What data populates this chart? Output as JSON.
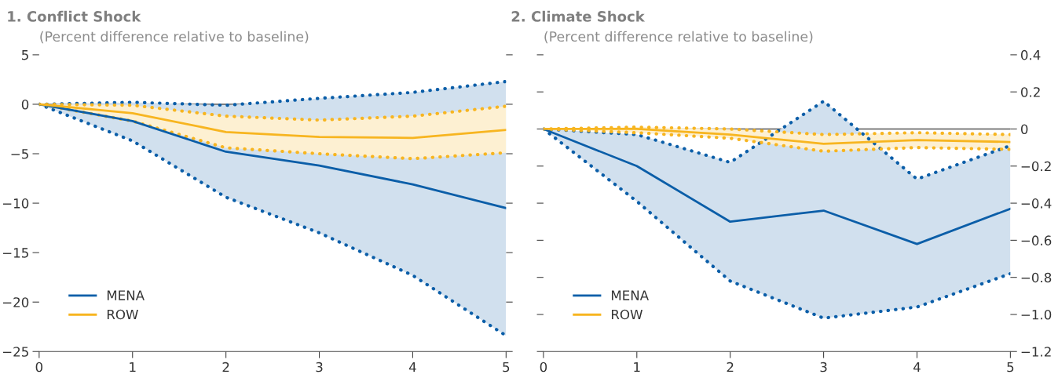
{
  "chart_data": [
    {
      "type": "line",
      "title": "1. Conflict Shock",
      "subtitle": "(Percent difference relative to baseline)",
      "x": [
        0,
        1,
        2,
        3,
        4,
        5
      ],
      "xlim": [
        0,
        5
      ],
      "xticks": [
        0,
        1,
        2,
        3,
        4,
        5
      ],
      "ylim": [
        -25,
        5
      ],
      "yticks": [
        {
          "value": -25,
          "label": "−25"
        },
        {
          "value": -20,
          "label": "−20"
        },
        {
          "value": -15,
          "label": "−15"
        },
        {
          "value": -10,
          "label": "−10"
        },
        {
          "value": -5,
          "label": "−5"
        },
        0,
        5
      ],
      "legend": "bottom left",
      "ref_lines": [
        {
          "axis": "y",
          "value": 0,
          "color": "#555555"
        }
      ],
      "series": [
        {
          "name": "MENA",
          "color": "#0b5ea8",
          "values": [
            0,
            -1.7,
            -4.8,
            -6.2,
            -8.1,
            -10.5
          ],
          "lower": [
            0,
            -3.7,
            -9.4,
            -13.0,
            -17.3,
            -23.4
          ],
          "upper": [
            0,
            0.2,
            -0.1,
            0.6,
            1.2,
            2.3
          ]
        },
        {
          "name": "ROW",
          "color": "#f7b520",
          "values": [
            0,
            -0.9,
            -2.8,
            -3.3,
            -3.4,
            -2.6
          ],
          "lower": [
            0,
            -1.7,
            -4.4,
            -5.0,
            -5.5,
            -4.9
          ],
          "upper": [
            0,
            -0.1,
            -1.2,
            -1.6,
            -1.2,
            -0.2
          ]
        },
        {
          "color": "#0b5ea8",
          "line_style": "dotted",
          "values": [
            0,
            -3.7,
            -9.4,
            -13.0,
            -17.3,
            -23.4
          ]
        },
        {
          "color": "#0b5ea8",
          "line_style": "dotted",
          "values": [
            0,
            0.2,
            -0.1,
            0.6,
            1.2,
            2.3
          ]
        },
        {
          "color": "#f7b520",
          "line_style": "dotted",
          "values": [
            0,
            -1.7,
            -4.4,
            -5.0,
            -5.5,
            -4.9
          ]
        },
        {
          "color": "#f7b520",
          "line_style": "dotted",
          "values": [
            0,
            -0.1,
            -1.2,
            -1.6,
            -1.2,
            -0.2
          ]
        }
      ]
    },
    {
      "type": "line",
      "title": "2. Climate Shock",
      "subtitle": "(Percent difference relative to baseline)",
      "x": [
        0,
        1,
        2,
        3,
        4,
        5
      ],
      "xlim": [
        0,
        5
      ],
      "xticks": [
        0,
        1,
        2,
        3,
        4,
        5
      ],
      "y2lim": [
        -1.2,
        0.4
      ],
      "y2ticks": [
        {
          "value": -1.2,
          "label": "−1.2"
        },
        {
          "value": -1.0,
          "label": "−1.0"
        },
        {
          "value": -0.8,
          "label": "−0.8"
        },
        {
          "value": -0.6,
          "label": "−0.6"
        },
        {
          "value": -0.4,
          "label": "−0.4"
        },
        {
          "value": -0.2,
          "label": "−0.2"
        },
        0,
        0.2,
        0.4
      ],
      "legend": "bottom left",
      "ref_lines": [
        {
          "axis": "y2",
          "value": 0,
          "color": "#555555"
        }
      ],
      "series": [
        {
          "name": "MENA",
          "color": "#0b5ea8",
          "axis": "y2",
          "values": [
            0,
            -0.2,
            -0.5,
            -0.44,
            -0.62,
            -0.43
          ],
          "lower": [
            0,
            -0.39,
            -0.82,
            -1.02,
            -0.96,
            -0.78
          ],
          "upper": [
            0,
            -0.03,
            -0.18,
            0.15,
            -0.27,
            -0.09
          ]
        },
        {
          "name": "ROW",
          "color": "#f7b520",
          "axis": "y2",
          "values": [
            0,
            0.0,
            -0.03,
            -0.08,
            -0.06,
            -0.07
          ],
          "lower": [
            0,
            -0.02,
            -0.05,
            -0.12,
            -0.1,
            -0.11
          ],
          "upper": [
            0,
            0.01,
            0.0,
            -0.03,
            -0.02,
            -0.03
          ]
        },
        {
          "color": "#0b5ea8",
          "axis": "y2",
          "line_style": "dotted",
          "values": [
            0,
            -0.39,
            -0.82,
            -1.02,
            -0.96,
            -0.78
          ]
        },
        {
          "color": "#0b5ea8",
          "axis": "y2",
          "line_style": "dotted",
          "values": [
            0,
            -0.03,
            -0.18,
            0.15,
            -0.27,
            -0.09
          ]
        },
        {
          "color": "#f7b520",
          "axis": "y2",
          "line_style": "dotted",
          "values": [
            0,
            -0.02,
            -0.05,
            -0.12,
            -0.1,
            -0.11
          ]
        },
        {
          "color": "#f7b520",
          "axis": "y2",
          "line_style": "dotted",
          "values": [
            0,
            0.01,
            0.0,
            -0.03,
            -0.02,
            -0.03
          ]
        }
      ]
    }
  ]
}
